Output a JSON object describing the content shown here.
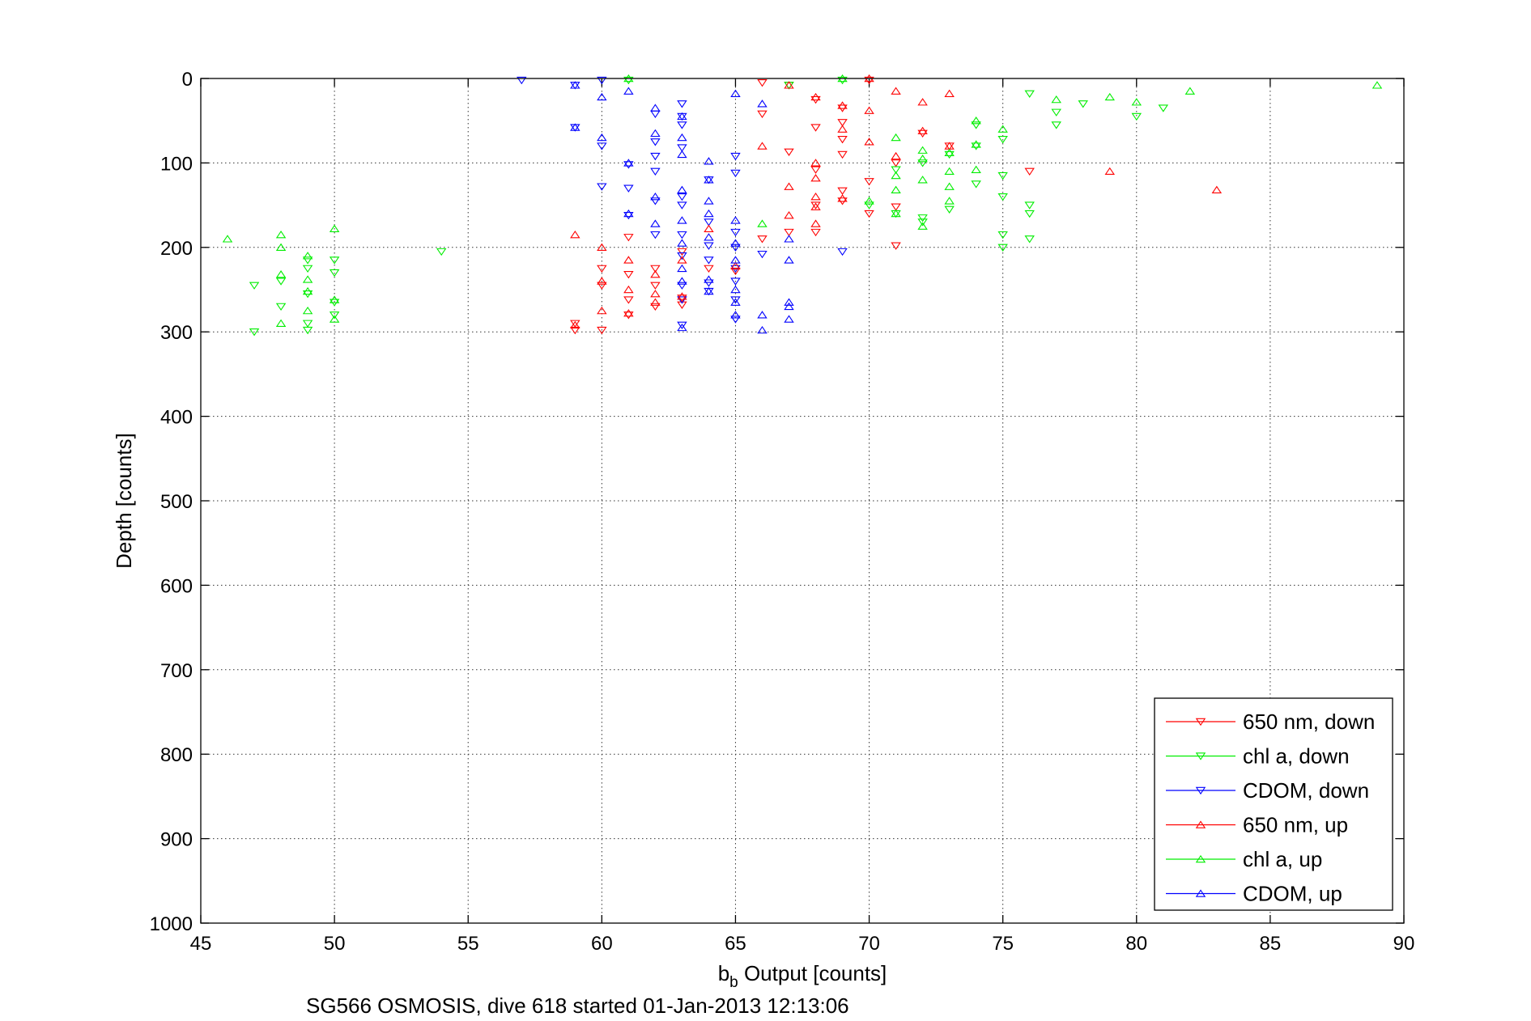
{
  "chart_data": {
    "type": "scatter",
    "xlabel_main": "b",
    "xlabel_sub": "b",
    "xlabel_rest": " Output [counts]",
    "ylabel": "Depth [counts]",
    "caption": "SG566 OSMOSIS, dive 618 started 01-Jan-2013 12:13:06",
    "xlim": [
      45,
      90
    ],
    "ylim": [
      0,
      1000
    ],
    "y_reversed": true,
    "grid": true,
    "legend_placement": "bottom-right",
    "x_ticks": [
      "45",
      "50",
      "55",
      "60",
      "65",
      "70",
      "75",
      "80",
      "85",
      "90"
    ],
    "y_ticks": [
      "0",
      "100",
      "200",
      "300",
      "400",
      "500",
      "600",
      "700",
      "800",
      "900",
      "1000"
    ],
    "series": [
      {
        "name": "650 nm, down",
        "color": "#ff0000",
        "marker": "triangle-down",
        "points": [
          [
            66,
            5
          ],
          [
            67,
            8
          ],
          [
            70,
            2
          ],
          [
            68,
            25
          ],
          [
            69,
            35
          ],
          [
            66,
            42
          ],
          [
            68,
            58
          ],
          [
            69,
            52
          ],
          [
            69,
            72
          ],
          [
            69,
            90
          ],
          [
            67,
            87
          ],
          [
            70,
            122
          ],
          [
            71,
            100
          ],
          [
            72,
            65
          ],
          [
            73,
            80
          ],
          [
            76,
            110
          ],
          [
            68,
            108
          ],
          [
            68,
            150
          ],
          [
            69,
            133
          ],
          [
            69,
            145
          ],
          [
            68,
            182
          ],
          [
            71,
            152
          ],
          [
            70,
            160
          ],
          [
            71,
            198
          ],
          [
            67,
            182
          ],
          [
            66,
            190
          ],
          [
            61,
            188
          ],
          [
            60,
            225
          ],
          [
            61,
            232
          ],
          [
            60,
            245
          ],
          [
            59,
            290
          ],
          [
            59,
            298
          ],
          [
            60,
            298
          ],
          [
            61,
            280
          ],
          [
            62,
            270
          ],
          [
            62,
            245
          ],
          [
            62,
            225
          ],
          [
            63,
            205
          ],
          [
            61,
            262
          ],
          [
            63,
            260
          ],
          [
            63,
            268
          ],
          [
            64,
            225
          ],
          [
            65,
            228
          ]
        ]
      },
      {
        "name": "chl a, down",
        "color": "#00ee00",
        "marker": "triangle-down",
        "points": [
          [
            61,
            2
          ],
          [
            67,
            8
          ],
          [
            69,
            2
          ],
          [
            76,
            18
          ],
          [
            77,
            40
          ],
          [
            77,
            55
          ],
          [
            78,
            30
          ],
          [
            80,
            45
          ],
          [
            81,
            35
          ],
          [
            74,
            80
          ],
          [
            75,
            72
          ],
          [
            74,
            55
          ],
          [
            73,
            90
          ],
          [
            72,
            100
          ],
          [
            71,
            108
          ],
          [
            72,
            170
          ],
          [
            72,
            165
          ],
          [
            73,
            155
          ],
          [
            74,
            125
          ],
          [
            75,
            115
          ],
          [
            75,
            140
          ],
          [
            75,
            185
          ],
          [
            75,
            200
          ],
          [
            76,
            160
          ],
          [
            76,
            190
          ],
          [
            76,
            150
          ],
          [
            70,
            150
          ],
          [
            71,
            160
          ],
          [
            54,
            205
          ],
          [
            47,
            245
          ],
          [
            47,
            300
          ],
          [
            48,
            240
          ],
          [
            48,
            270
          ],
          [
            49,
            215
          ],
          [
            49,
            225
          ],
          [
            49,
            255
          ],
          [
            49,
            290
          ],
          [
            49,
            298
          ],
          [
            50,
            215
          ],
          [
            50,
            230
          ],
          [
            50,
            265
          ],
          [
            50,
            280
          ]
        ]
      },
      {
        "name": "CDOM, down",
        "color": "#0000ff",
        "marker": "triangle-down",
        "points": [
          [
            57,
            2
          ],
          [
            59,
            8
          ],
          [
            59,
            58
          ],
          [
            60,
            2
          ],
          [
            60,
            80
          ],
          [
            60,
            128
          ],
          [
            61,
            102
          ],
          [
            61,
            130
          ],
          [
            61,
            162
          ],
          [
            62,
            42
          ],
          [
            62,
            75
          ],
          [
            62,
            92
          ],
          [
            62,
            110
          ],
          [
            62,
            145
          ],
          [
            62,
            185
          ],
          [
            63,
            30
          ],
          [
            63,
            45
          ],
          [
            63,
            55
          ],
          [
            63,
            82
          ],
          [
            63,
            140
          ],
          [
            63,
            150
          ],
          [
            63,
            185
          ],
          [
            63,
            210
          ],
          [
            63,
            245
          ],
          [
            63,
            262
          ],
          [
            63,
            292
          ],
          [
            64,
            120
          ],
          [
            64,
            170
          ],
          [
            64,
            198
          ],
          [
            64,
            215
          ],
          [
            64,
            242
          ],
          [
            64,
            252
          ],
          [
            65,
            92
          ],
          [
            65,
            112
          ],
          [
            65,
            182
          ],
          [
            65,
            200
          ],
          [
            65,
            225
          ],
          [
            65,
            240
          ],
          [
            65,
            262
          ],
          [
            65,
            285
          ],
          [
            66,
            208
          ],
          [
            69,
            205
          ]
        ]
      },
      {
        "name": "650 nm, up",
        "color": "#ff0000",
        "marker": "triangle-up",
        "points": [
          [
            70,
            0
          ],
          [
            71,
            15
          ],
          [
            72,
            28
          ],
          [
            73,
            18
          ],
          [
            69,
            32
          ],
          [
            70,
            38
          ],
          [
            68,
            22
          ],
          [
            69,
            60
          ],
          [
            70,
            75
          ],
          [
            66,
            80
          ],
          [
            68,
            100
          ],
          [
            68,
            118
          ],
          [
            67,
            128
          ],
          [
            68,
            140
          ],
          [
            68,
            152
          ],
          [
            68,
            172
          ],
          [
            69,
            142
          ],
          [
            72,
            62
          ],
          [
            73,
            80
          ],
          [
            79,
            110
          ],
          [
            83,
            132
          ],
          [
            71,
            92
          ],
          [
            67,
            162
          ],
          [
            60,
            200
          ],
          [
            60,
            240
          ],
          [
            61,
            215
          ],
          [
            61,
            250
          ],
          [
            61,
            278
          ],
          [
            62,
            265
          ],
          [
            62,
            255
          ],
          [
            62,
            232
          ],
          [
            59,
            185
          ],
          [
            59,
            292
          ],
          [
            60,
            275
          ],
          [
            63,
            215
          ],
          [
            63,
            258
          ],
          [
            65,
            222
          ],
          [
            64,
            178
          ],
          [
            67,
            8
          ]
        ]
      },
      {
        "name": "chl a, up",
        "color": "#00ee00",
        "marker": "triangle-up",
        "points": [
          [
            61,
            0
          ],
          [
            69,
            0
          ],
          [
            89,
            8
          ],
          [
            82,
            15
          ],
          [
            79,
            22
          ],
          [
            80,
            28
          ],
          [
            77,
            25
          ],
          [
            74,
            50
          ],
          [
            75,
            60
          ],
          [
            74,
            78
          ],
          [
            72,
            85
          ],
          [
            73,
            88
          ],
          [
            71,
            70
          ],
          [
            71,
            115
          ],
          [
            71,
            132
          ],
          [
            72,
            120
          ],
          [
            72,
            95
          ],
          [
            73,
            110
          ],
          [
            73,
            128
          ],
          [
            73,
            145
          ],
          [
            74,
            108
          ],
          [
            72,
            175
          ],
          [
            71,
            160
          ],
          [
            70,
            145
          ],
          [
            66,
            172
          ],
          [
            46,
            190
          ],
          [
            48,
            185
          ],
          [
            48,
            200
          ],
          [
            48,
            232
          ],
          [
            48,
            290
          ],
          [
            49,
            210
          ],
          [
            49,
            238
          ],
          [
            49,
            252
          ],
          [
            49,
            275
          ],
          [
            50,
            178
          ],
          [
            50,
            262
          ],
          [
            50,
            285
          ]
        ]
      },
      {
        "name": "CDOM, up",
        "color": "#0000ff",
        "marker": "triangle-up",
        "points": [
          [
            59,
            58
          ],
          [
            59,
            8
          ],
          [
            60,
            22
          ],
          [
            60,
            70
          ],
          [
            61,
            15
          ],
          [
            61,
            100
          ],
          [
            61,
            160
          ],
          [
            62,
            35
          ],
          [
            62,
            65
          ],
          [
            62,
            140
          ],
          [
            62,
            172
          ],
          [
            63,
            45
          ],
          [
            63,
            70
          ],
          [
            63,
            90
          ],
          [
            63,
            132
          ],
          [
            63,
            168
          ],
          [
            63,
            195
          ],
          [
            63,
            225
          ],
          [
            63,
            240
          ],
          [
            63,
            295
          ],
          [
            64,
            98
          ],
          [
            64,
            120
          ],
          [
            64,
            145
          ],
          [
            64,
            160
          ],
          [
            64,
            188
          ],
          [
            64,
            238
          ],
          [
            64,
            252
          ],
          [
            65,
            18
          ],
          [
            65,
            168
          ],
          [
            65,
            195
          ],
          [
            65,
            215
          ],
          [
            65,
            250
          ],
          [
            65,
            265
          ],
          [
            65,
            280
          ],
          [
            66,
            30
          ],
          [
            66,
            280
          ],
          [
            66,
            298
          ],
          [
            67,
            190
          ],
          [
            67,
            215
          ],
          [
            67,
            265
          ],
          [
            67,
            270
          ],
          [
            67,
            285
          ]
        ]
      }
    ]
  }
}
